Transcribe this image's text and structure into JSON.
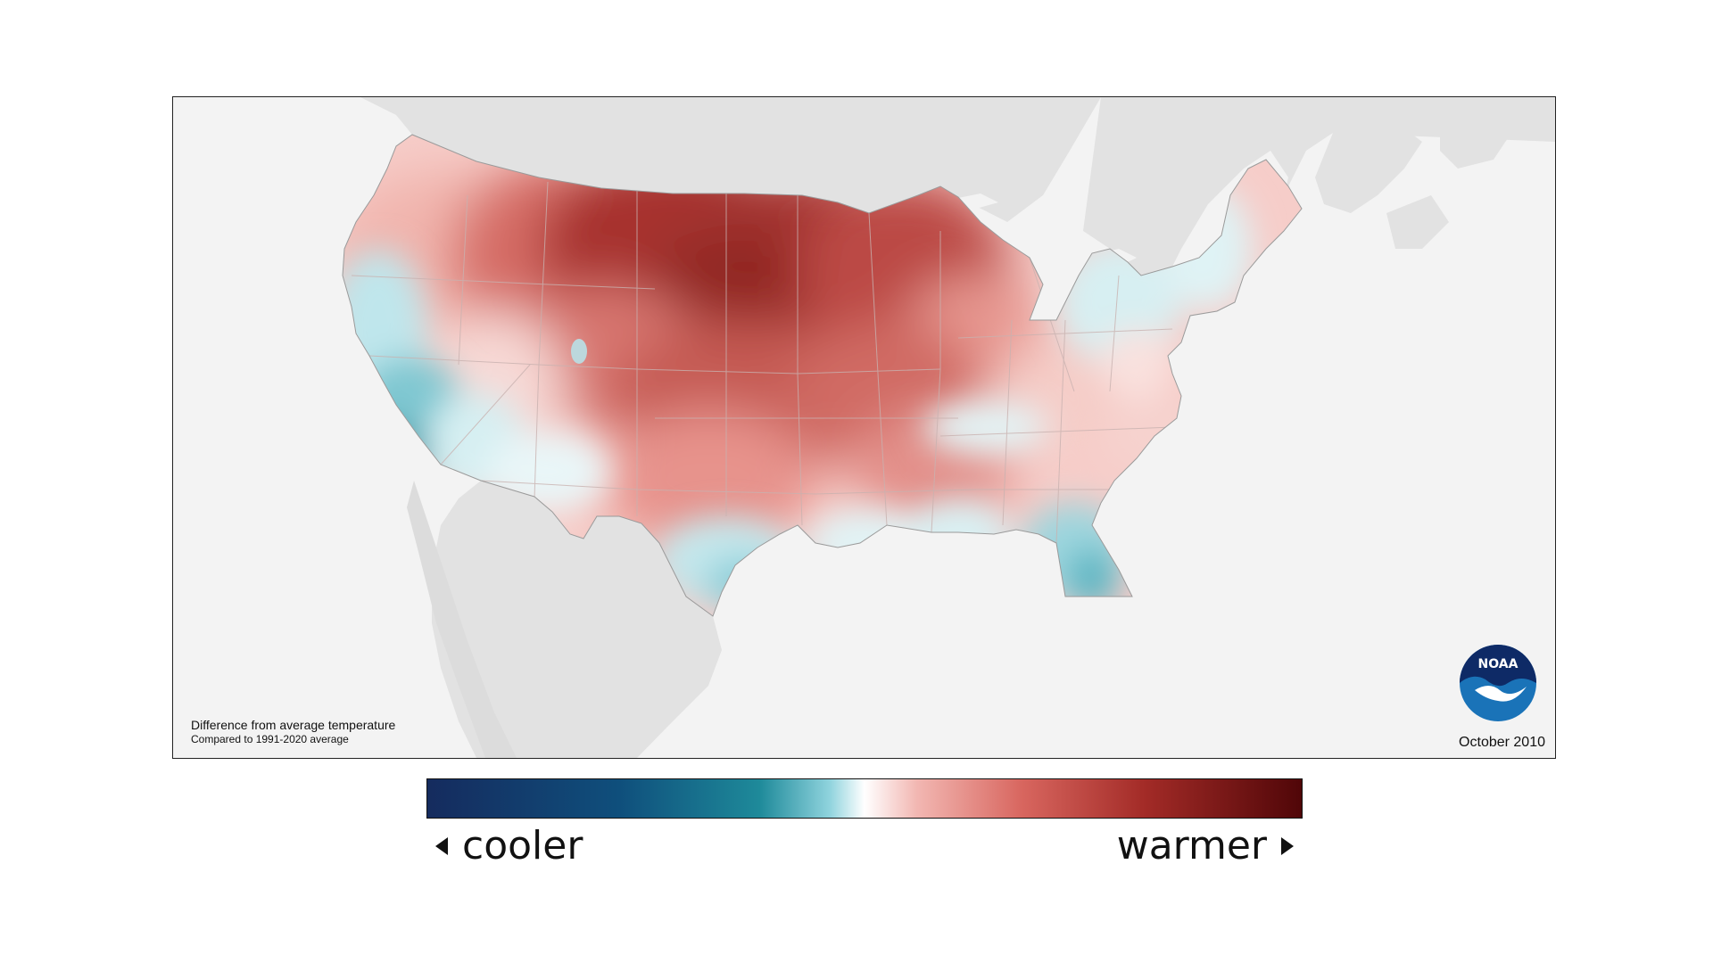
{
  "map": {
    "caption_title": "Difference from average temperature",
    "caption_subtitle": "Compared to 1991-2020 average",
    "date": "October 2010",
    "logo_text": "NOAA"
  },
  "legend": {
    "cool_label": "cooler",
    "warm_label": "warmer"
  },
  "colors": {
    "cool_dark": "#152b5e",
    "cool_mid": "#1e8a9a",
    "neutral": "#ffffff",
    "warm_mid": "#d8665f",
    "warm_dark": "#500608",
    "land_outside": "#e2e2e2",
    "background": "#f3f3f3"
  }
}
